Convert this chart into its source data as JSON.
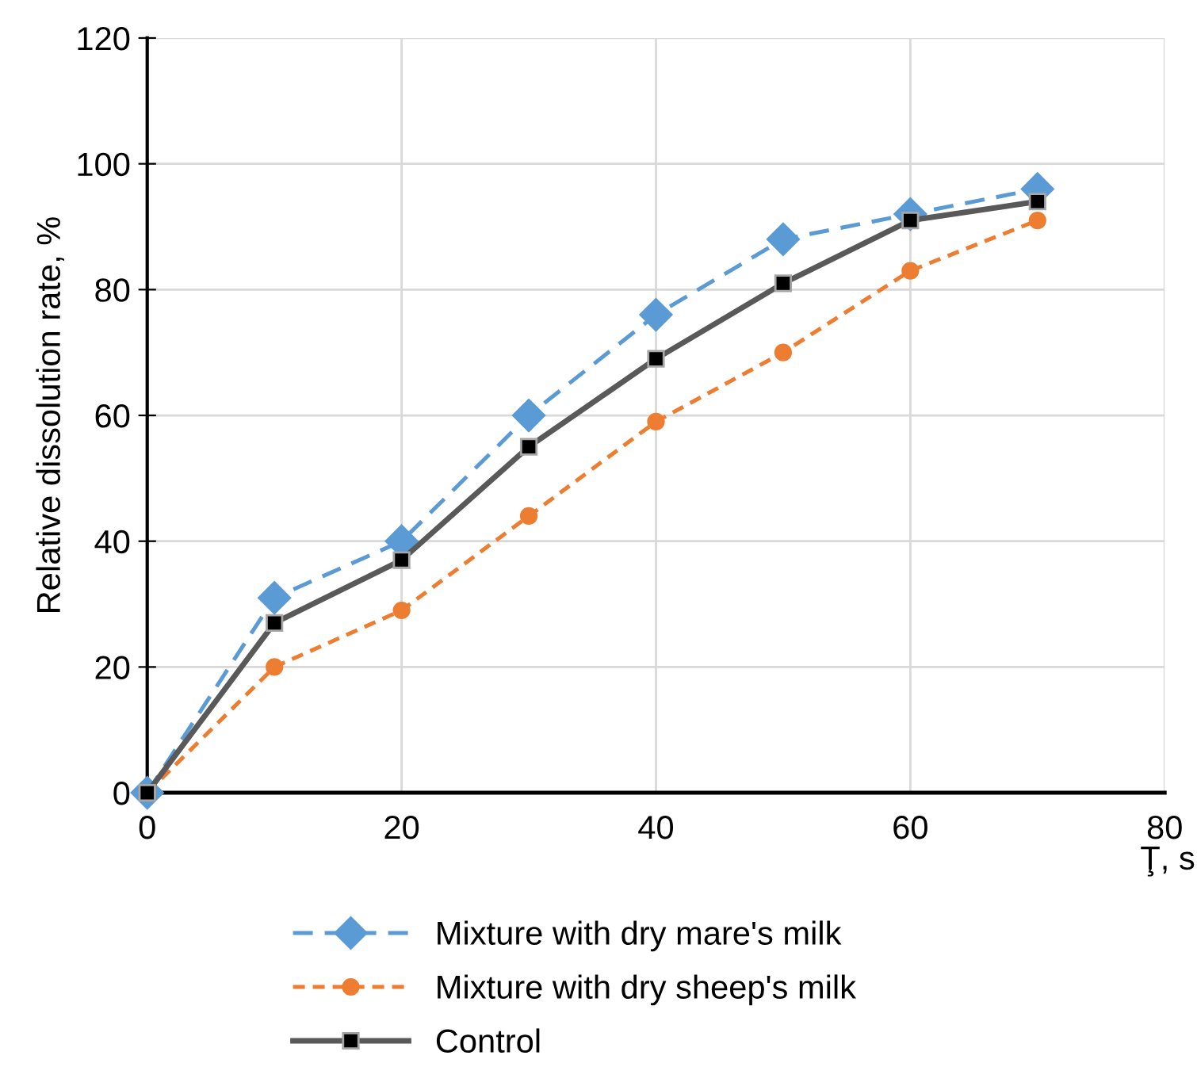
{
  "chart_data": {
    "type": "line",
    "xlabel": "Ţ, s",
    "ylabel": "Relative dissolution rate, %",
    "x": [
      0,
      10,
      20,
      30,
      40,
      50,
      60,
      70
    ],
    "series": [
      {
        "name": "Mixture with dry mare's milk",
        "color": "#5b9bd5",
        "marker": "diamond",
        "line_style": "dashed",
        "values": [
          0,
          31,
          40,
          60,
          76,
          88,
          92,
          96
        ]
      },
      {
        "name": "Mixture with dry sheep's milk",
        "color": "#ed7d31",
        "marker": "circle",
        "line_style": "dotted",
        "values": [
          0,
          20,
          29,
          44,
          59,
          70,
          83,
          91
        ]
      },
      {
        "name": "Control",
        "color": "#595959",
        "marker": "square",
        "line_style": "solid",
        "values": [
          0,
          27,
          37,
          55,
          69,
          81,
          91,
          94
        ]
      }
    ],
    "xlim": [
      0,
      80
    ],
    "xticks": [
      0,
      20,
      40,
      60,
      80
    ],
    "ylim": [
      0,
      120
    ],
    "yticks": [
      0,
      20,
      40,
      60,
      80,
      100,
      120
    ],
    "grid": true,
    "legend": "bottom"
  }
}
